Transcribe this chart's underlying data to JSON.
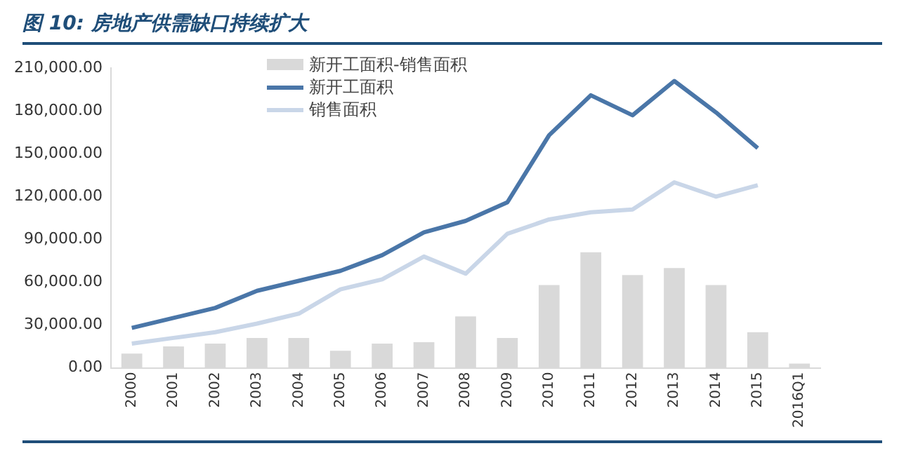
{
  "chart_data": {
    "type": "bar",
    "title": "图 10:  房地产供需缺口持续扩大",
    "categories": [
      "2000",
      "2001",
      "2002",
      "2003",
      "2004",
      "2005",
      "2006",
      "2007",
      "2008",
      "2009",
      "2010",
      "2011",
      "2012",
      "2013",
      "2014",
      "2015",
      "2016Q1"
    ],
    "series": [
      {
        "name": "新开工面积-销售面积",
        "color": "#d9d9d9",
        "values": [
          10000,
          15000,
          17000,
          21000,
          21000,
          12000,
          17000,
          18000,
          36000,
          21000,
          58000,
          81000,
          65000,
          70000,
          58000,
          25000,
          3000
        ]
      },
      {
        "name": "新开工面积",
        "type": "line",
        "color": "#4a76a8",
        "values": [
          28000,
          35000,
          42000,
          54000,
          61000,
          68000,
          79000,
          95000,
          103000,
          116000,
          163000,
          191000,
          177000,
          201000,
          179000,
          154000,
          null
        ]
      },
      {
        "name": "销售面积",
        "type": "line",
        "color": "#c9d6e8",
        "values": [
          17000,
          21000,
          25000,
          31000,
          38000,
          55000,
          62000,
          78000,
          66000,
          94000,
          104000,
          109000,
          111000,
          130000,
          120000,
          128000,
          null
        ]
      }
    ],
    "ylim": [
      0,
      210000
    ],
    "yticks": [
      {
        "value": 0,
        "label": "0.00"
      },
      {
        "value": 30000,
        "label": "30,000.00"
      },
      {
        "value": 60000,
        "label": "60,000.00"
      },
      {
        "value": 90000,
        "label": "90,000.00"
      },
      {
        "value": 120000,
        "label": "120,000.00"
      },
      {
        "value": 150000,
        "label": "150,000.00"
      },
      {
        "value": 180000,
        "label": "180,000.00"
      },
      {
        "value": 210000,
        "label": "210,000.00"
      }
    ],
    "grid": false,
    "legend": "top",
    "marker": "none"
  }
}
